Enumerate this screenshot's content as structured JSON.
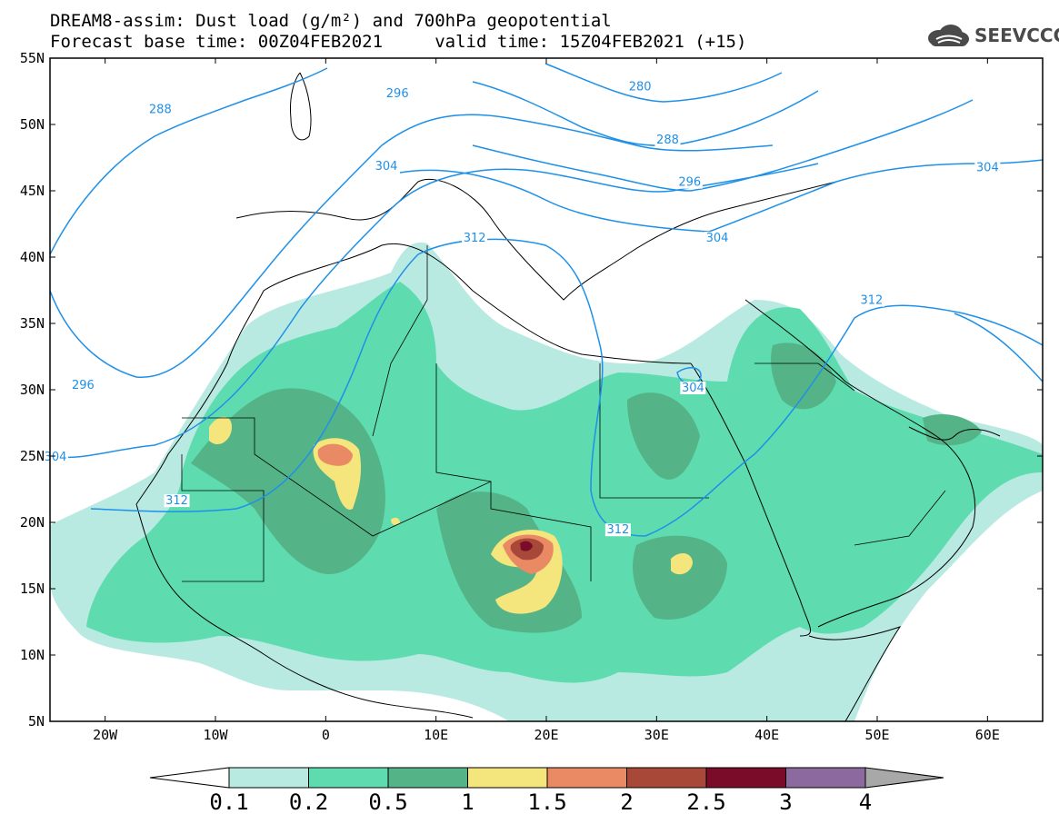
{
  "title": {
    "line1": "DREAM8-assim: Dust load (g/m²) and 700hPa geopotential",
    "line2": "Forecast base time: 00Z04FEB2021     valid time: 15Z04FEB2021 (+15)"
  },
  "logo": {
    "text": "SEEVCCC",
    "icon": "cloud-icon"
  },
  "map": {
    "lon_range": [
      -25,
      65
    ],
    "lat_range": [
      5,
      55
    ],
    "lat_ticks": [
      "55N",
      "50N",
      "45N",
      "40N",
      "35N",
      "30N",
      "25N",
      "20N",
      "15N",
      "10N",
      "5N"
    ],
    "lon_ticks": [
      "20W",
      "10W",
      "0",
      "10E",
      "20E",
      "30E",
      "40E",
      "50E",
      "60E"
    ],
    "contour_labels": [
      {
        "text": "288",
        "lon": -15,
        "lat": 51
      },
      {
        "text": "296",
        "lon": 6.5,
        "lat": 52.2
      },
      {
        "text": "280",
        "lon": 28.5,
        "lat": 52.7
      },
      {
        "text": "288",
        "lon": 31,
        "lat": 48.7
      },
      {
        "text": "304",
        "lon": 5.5,
        "lat": 46.7
      },
      {
        "text": "296",
        "lon": 33,
        "lat": 45.5
      },
      {
        "text": "304",
        "lon": 60,
        "lat": 46.6
      },
      {
        "text": "312",
        "lon": 13.5,
        "lat": 41.3
      },
      {
        "text": "304",
        "lon": 35.5,
        "lat": 41.3
      },
      {
        "text": "312",
        "lon": 49.5,
        "lat": 36.6
      },
      {
        "text": "296",
        "lon": -22,
        "lat": 30.2
      },
      {
        "text": "304",
        "lon": 33.3,
        "lat": 30.0
      },
      {
        "text": "304",
        "lon": -24.5,
        "lat": 24.8
      },
      {
        "text": "312",
        "lon": -13.5,
        "lat": 21.5
      },
      {
        "text": "312",
        "lon": 26.5,
        "lat": 19.3
      }
    ],
    "colors": {
      "contour": "#1e90e8",
      "border": "#000000"
    }
  },
  "colorbar": {
    "labels": [
      "0.1",
      "0.2",
      "0.5",
      "1",
      "1.5",
      "2",
      "2.5",
      "3",
      "4"
    ],
    "colors": [
      "#ffffff",
      "#b9eae2",
      "#5edcb0",
      "#54b488",
      "#f4e67c",
      "#e98a64",
      "#a84838",
      "#7a0c2a",
      "#8c6aa0",
      "#a8a8a8"
    ]
  }
}
